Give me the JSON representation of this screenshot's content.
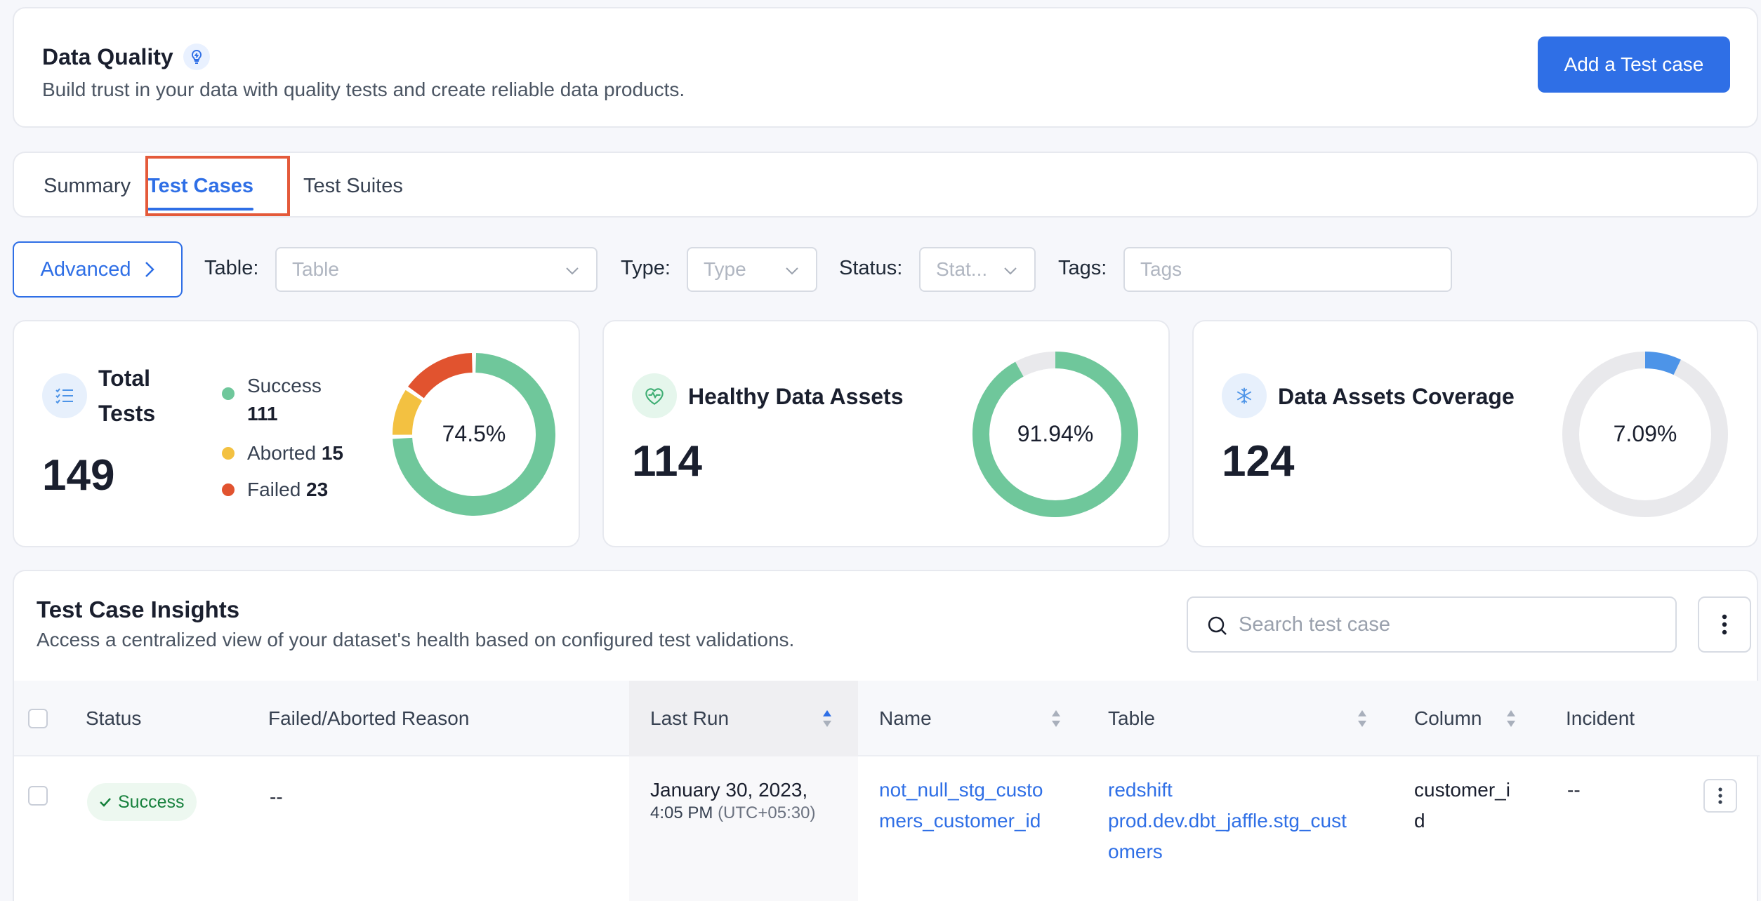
{
  "header": {
    "title": "Data Quality",
    "subtitle": "Build trust in your data with quality tests and create reliable data products.",
    "add_button": "Add a Test case"
  },
  "tabs": [
    {
      "label": "Summary",
      "active": false
    },
    {
      "label": "Test Cases",
      "active": true
    },
    {
      "label": "Test Suites",
      "active": false
    }
  ],
  "filters": {
    "advanced_label": "Advanced",
    "table": {
      "label": "Table",
      "placeholder": "Table"
    },
    "type": {
      "label": "Type",
      "placeholder": "Type"
    },
    "status": {
      "label": "Status",
      "placeholder": "Stat..."
    },
    "tags": {
      "label": "Tags",
      "placeholder": "Tags"
    }
  },
  "stats": {
    "total": {
      "title_line1": "Total",
      "title_line2": "Tests",
      "value": "149",
      "legend": [
        {
          "label": "Success",
          "value": "111",
          "color": "#6fc79b"
        },
        {
          "label": "Aborted",
          "value": "15",
          "color": "#f3c141"
        },
        {
          "label": "Failed",
          "value": "23",
          "color": "#e1532f"
        }
      ],
      "percent": "74.5%"
    },
    "healthy": {
      "title": "Healthy Data Assets",
      "value": "114",
      "percent": "91.94%",
      "fraction": 0.9194,
      "color": "#6fc79b"
    },
    "coverage": {
      "title": "Data Assets Coverage",
      "value": "124",
      "percent": "7.09%",
      "fraction": 0.0709,
      "color": "#4d94e8"
    }
  },
  "insights": {
    "title": "Test Case Insights",
    "subtitle": "Access a centralized view of your dataset's health based on configured test validations.",
    "search_placeholder": "Search test case",
    "columns": [
      "Status",
      "Failed/Aborted Reason",
      "Last Run",
      "Name",
      "Table",
      "Column",
      "Incident"
    ],
    "rows": [
      {
        "status": "Success",
        "reason": "--",
        "last_run_date": "January 30, 2023,",
        "last_run_time": "4:05 PM",
        "last_run_tz": "(UTC+05:30)",
        "name_line1": "not_null_stg_custo",
        "name_line2": "mers_customer_id",
        "table_line1": "redshift",
        "table_line2": "prod.dev.dbt_jaffle.stg_cust",
        "table_line3": "omers",
        "column_line1": "customer_i",
        "column_line2": "d",
        "incident": "--"
      }
    ]
  },
  "colors": {
    "accent": "#2f6fe6",
    "success": "#6fc79b",
    "aborted": "#f3c141",
    "failed": "#e1532f",
    "coverage": "#4d94e8",
    "track": "#e9e9ec"
  }
}
